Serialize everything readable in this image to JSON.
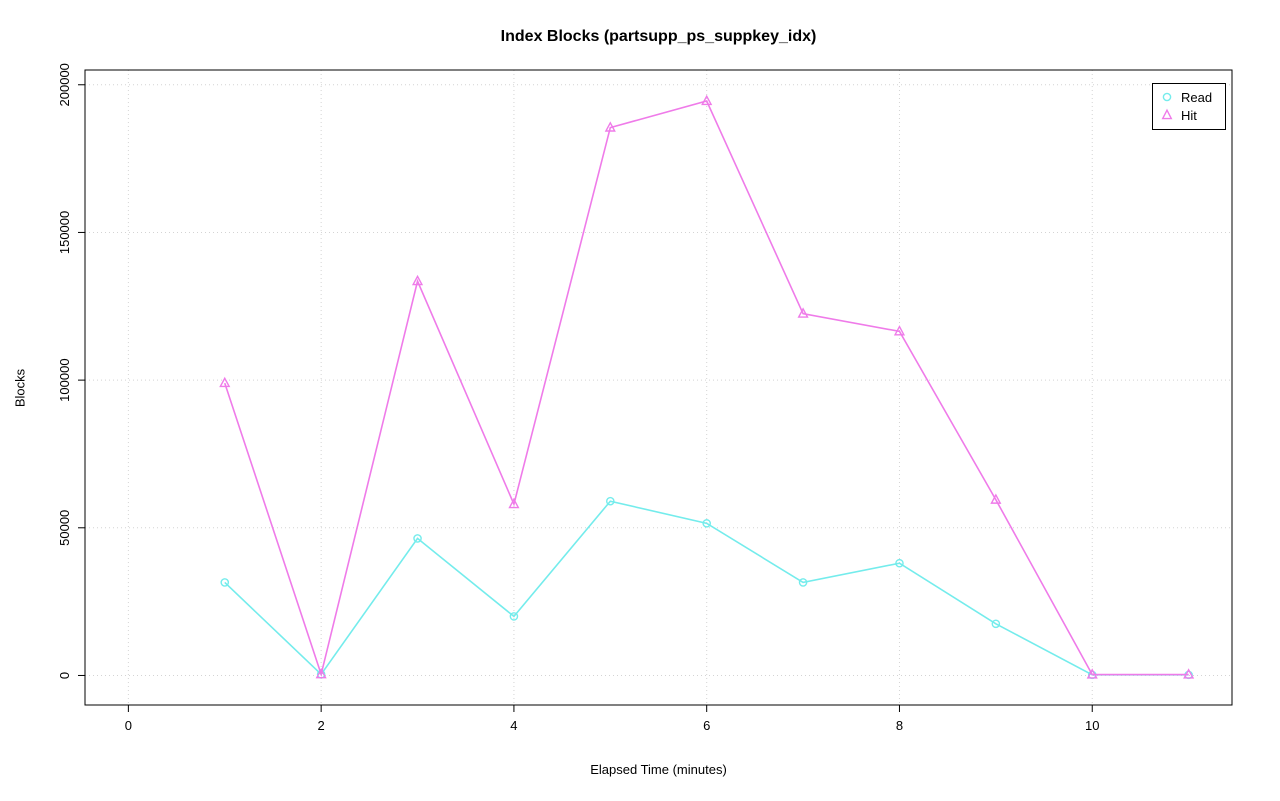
{
  "chart_data": {
    "type": "line",
    "title": "Index Blocks (partsupp_ps_suppkey_idx)",
    "xlabel": "Elapsed Time (minutes)",
    "ylabel": "Blocks",
    "x": [
      1,
      2,
      3,
      4,
      5,
      6,
      7,
      8,
      9,
      10,
      11
    ],
    "series": [
      {
        "name": "Read",
        "marker": "circle",
        "color": "#74ECEC",
        "values": [
          31500,
          400,
          46400,
          20000,
          59000,
          51500,
          31500,
          38000,
          17500,
          200,
          200
        ]
      },
      {
        "name": "Hit",
        "marker": "triangle",
        "color": "#EF7BE9",
        "values": [
          99000,
          400,
          133500,
          58000,
          185500,
          194500,
          122500,
          116500,
          59500,
          300,
          300
        ]
      }
    ],
    "xlim": [
      -0.45,
      11.45
    ],
    "ylim": [
      -10000,
      205000
    ],
    "xticks": [
      0,
      2,
      4,
      6,
      8,
      10
    ],
    "yticks": [
      0,
      50000,
      100000,
      150000,
      200000
    ],
    "grid": true,
    "grid_style": "dotted",
    "grid_color": "#d4d4d4",
    "legend_position": "top-right",
    "legend_labels": [
      "Read",
      "Hit"
    ]
  }
}
